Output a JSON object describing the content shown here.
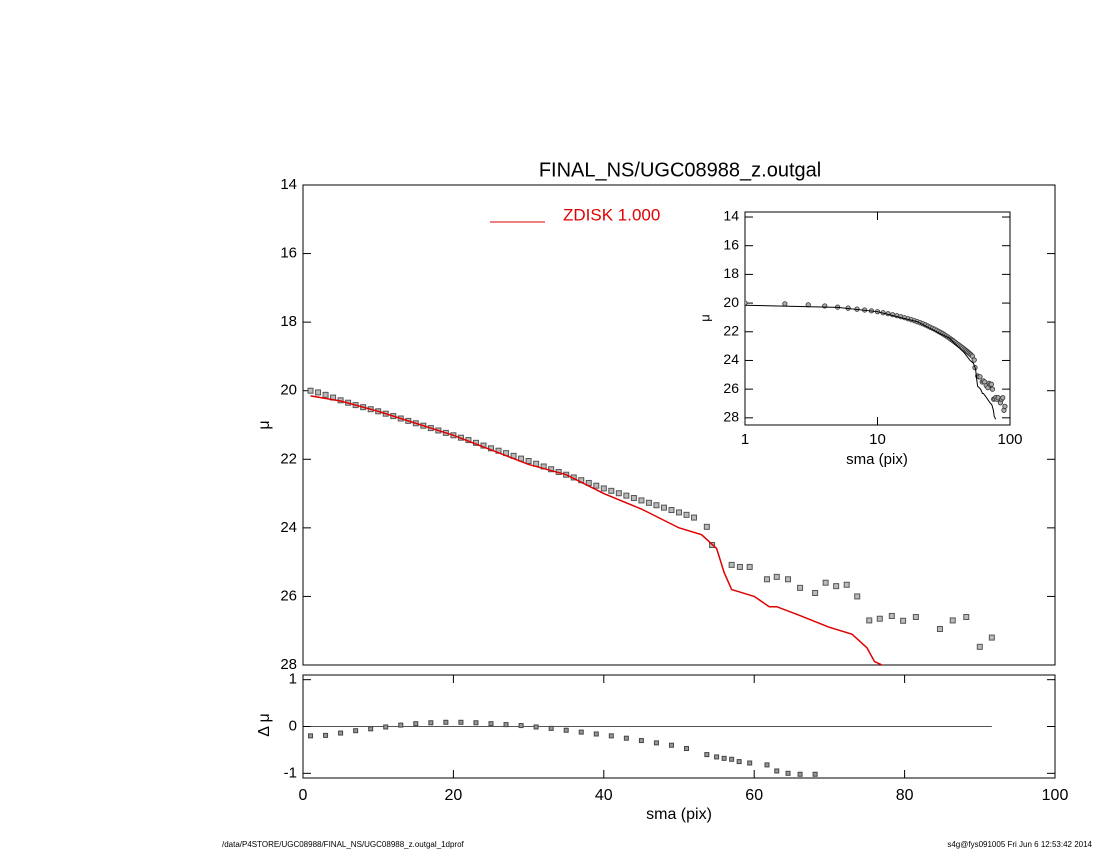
{
  "chart_data": [
    {
      "type": "scatter",
      "title": "FINAL_NS/UGC08988_z.outgal",
      "ylabel": "μ",
      "xlim": [
        0,
        100
      ],
      "ylim": [
        14,
        28
      ],
      "yticks": [
        14,
        16,
        18,
        20,
        22,
        24,
        26,
        28
      ],
      "x": [
        1,
        2,
        3,
        4,
        5,
        6,
        7,
        8,
        9,
        10,
        11,
        12,
        13,
        14,
        15,
        16,
        17,
        18,
        19,
        20,
        21,
        22,
        23,
        24,
        25,
        26,
        27,
        28,
        29,
        30,
        31,
        32,
        33,
        34,
        35,
        36,
        37,
        38,
        39,
        40,
        41,
        42,
        43,
        44,
        45,
        46,
        47,
        48,
        49,
        50,
        51,
        52,
        53.7,
        54.4,
        57.0,
        58.1,
        59.4,
        61.7,
        63.0,
        64.5,
        66.1,
        68.1,
        69.5,
        70.9,
        72.3,
        73.7,
        75.3,
        76.7,
        78.3,
        79.8,
        81.5,
        84.7,
        86.4,
        88.2,
        90.0,
        91.6
      ],
      "values": [
        20.0,
        20.05,
        20.12,
        20.2,
        20.28,
        20.35,
        20.42,
        20.48,
        20.54,
        20.6,
        20.67,
        20.74,
        20.81,
        20.88,
        20.95,
        21.02,
        21.09,
        21.16,
        21.23,
        21.3,
        21.37,
        21.44,
        21.52,
        21.6,
        21.68,
        21.75,
        21.82,
        21.9,
        21.98,
        22.05,
        22.13,
        22.21,
        22.29,
        22.37,
        22.45,
        22.53,
        22.61,
        22.69,
        22.77,
        22.85,
        22.92,
        22.99,
        23.06,
        23.13,
        23.2,
        23.27,
        23.34,
        23.41,
        23.48,
        23.55,
        23.62,
        23.7,
        23.97,
        24.5,
        25.08,
        25.14,
        25.14,
        25.5,
        25.43,
        25.5,
        25.75,
        25.9,
        25.6,
        25.7,
        25.66,
        26.0,
        26.7,
        26.65,
        26.57,
        26.71,
        26.6,
        26.95,
        26.7,
        26.6,
        27.47,
        27.2
      ],
      "color": "#555555",
      "model": {
        "name": "ZDISK  1.000",
        "color": "#e00000",
        "x": [
          1,
          5,
          10,
          20,
          30,
          35,
          40,
          45,
          50,
          53,
          55,
          56,
          57,
          60,
          62,
          63,
          66,
          70,
          73,
          75,
          76,
          78
        ],
        "values": [
          20.15,
          20.3,
          20.6,
          21.3,
          22.15,
          22.45,
          23.0,
          23.45,
          24.0,
          24.2,
          24.6,
          25.3,
          25.8,
          26.0,
          26.3,
          26.3,
          26.55,
          26.9,
          27.1,
          27.5,
          27.9,
          28.1
        ]
      },
      "legend": "top"
    },
    {
      "type": "scatter",
      "ylabel": "Δ μ",
      "xlabel": "sma (pix)",
      "xlim": [
        0,
        100
      ],
      "xticks": [
        0,
        20,
        40,
        60,
        80,
        100
      ],
      "ylim": [
        -1.1,
        1.1
      ],
      "yticks": [
        -1,
        0,
        1
      ],
      "x": [
        1,
        3,
        5,
        7,
        9,
        11,
        13,
        15,
        17,
        19,
        21,
        23,
        25,
        27,
        29,
        31,
        33,
        35,
        37,
        39,
        41,
        43,
        45,
        47,
        49,
        51,
        53.7,
        55,
        56,
        57,
        58,
        59.4,
        61.7,
        63,
        64.5,
        66.1,
        68.1
      ],
      "values": [
        -0.2,
        -0.19,
        -0.14,
        -0.09,
        -0.05,
        -0.01,
        0.03,
        0.06,
        0.08,
        0.09,
        0.09,
        0.08,
        0.06,
        0.04,
        0.02,
        -0.01,
        -0.04,
        -0.08,
        -0.12,
        -0.16,
        -0.2,
        -0.25,
        -0.3,
        -0.35,
        -0.4,
        -0.47,
        -0.6,
        -0.65,
        -0.68,
        -0.7,
        -0.75,
        -0.78,
        -0.82,
        -0.95,
        -1.0,
        -1.02,
        -1.02
      ],
      "color": "#444444"
    },
    {
      "type": "inset",
      "ylabel": "μ",
      "xlabel": "sma (pix)",
      "xlog": true,
      "xlim": [
        1,
        100
      ],
      "xticks": [
        1,
        10,
        100
      ],
      "ylim": [
        13.65,
        28.5
      ],
      "yticks": [
        14,
        16,
        18,
        20,
        22,
        24,
        26,
        28
      ],
      "line_color": "#000000"
    }
  ],
  "footer": {
    "left": "/data/P4STORE/UGC08988/FINAL_NS/UGC08988_z.outgal_1dprof",
    "right": "s4g@fys091005  Fri Jun  6 12:53:42 2014"
  }
}
